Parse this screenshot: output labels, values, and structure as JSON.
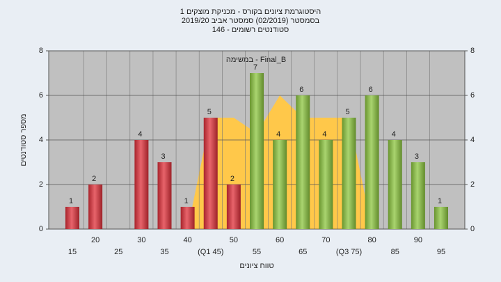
{
  "chart_data": {
    "type": "bar",
    "title": "היסטוגרמת ציונים בקורס - מכניקת מוצקים 1",
    "subtitle": "בסמסטר  (02/2019)  סמסטר אביב 2019/20",
    "subtitle2": "סטודנטים רשומים - 146",
    "annotation": "במשימה - Final_B",
    "xlabel": "טווח ציונים",
    "ylabel": "מספר סטודנטים",
    "categories": [
      "15",
      "20",
      "25",
      "30",
      "35",
      "40",
      "(Q1 45)",
      "50",
      "55",
      "60",
      "65",
      "70",
      "(Q3 75)",
      "80",
      "85",
      "90",
      "95"
    ],
    "values": [
      1,
      2,
      null,
      4,
      3,
      1,
      5,
      2,
      7,
      4,
      6,
      4,
      5,
      6,
      4,
      3,
      1
    ],
    "colors": [
      "#e0303a",
      "#e0303a",
      "#e0303a",
      "#e0303a",
      "#e0303a",
      "#e0303a",
      "#e0303a",
      "#e0303a",
      "#8cc63f",
      "#8cc63f",
      "#8cc63f",
      "#8cc63f",
      "#8cc63f",
      "#8cc63f",
      "#8cc63f",
      "#8cc63f",
      "#8cc63f"
    ],
    "overlay": {
      "color": "#ffc84a",
      "values": [
        null,
        null,
        null,
        null,
        null,
        0,
        5,
        5,
        4.3,
        6,
        5,
        5,
        5,
        0,
        null,
        null,
        null
      ]
    },
    "ylim": [
      0,
      8
    ],
    "yticks": [
      0,
      2,
      4,
      6,
      8
    ],
    "grid": true
  }
}
